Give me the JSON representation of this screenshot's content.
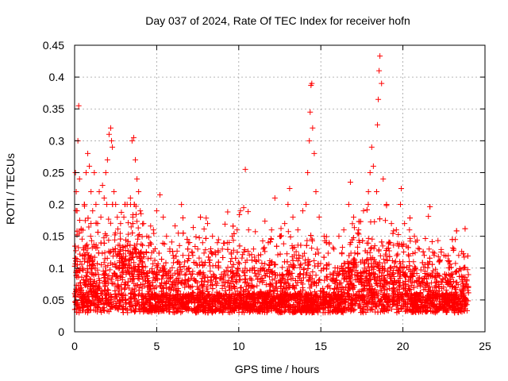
{
  "chart_data": {
    "type": "scatter",
    "title": "Day 037 of 2024, Rate Of TEC Index for receiver hofn",
    "xlabel": "GPS time / hours",
    "ylabel": "ROTI / TECUs",
    "xlim": [
      0,
      25
    ],
    "ylim": [
      0,
      0.45
    ],
    "xticks": [
      0,
      5,
      10,
      15,
      20,
      25
    ],
    "yticks": [
      0,
      0.05,
      0.1,
      0.15,
      0.2,
      0.25,
      0.3,
      0.35,
      0.4,
      0.45
    ],
    "xtick_labels": [
      "0",
      "5",
      "10",
      "15",
      "20",
      "25"
    ],
    "ytick_labels": [
      "0",
      "0.05",
      "0.1",
      "0.15",
      "0.2",
      "0.25",
      "0.3",
      "0.35",
      "0.4",
      "0.45"
    ],
    "grid": true,
    "marker": "+",
    "marker_color": "#ff0000",
    "series": [
      {
        "values_xy": [
          [
            0.05,
            0.25
          ],
          [
            0.1,
            0.22
          ],
          [
            0.15,
            0.19
          ],
          [
            0.2,
            0.3
          ],
          [
            0.25,
            0.355
          ],
          [
            0.3,
            0.24
          ],
          [
            0.4,
            0.16
          ],
          [
            0.5,
            0.12
          ],
          [
            0.6,
            0.2
          ],
          [
            0.7,
            0.25
          ],
          [
            0.8,
            0.28
          ],
          [
            0.9,
            0.26
          ],
          [
            1.0,
            0.22
          ],
          [
            1.1,
            0.19
          ],
          [
            1.2,
            0.25
          ],
          [
            1.3,
            0.2
          ],
          [
            1.4,
            0.17
          ],
          [
            1.5,
            0.22
          ],
          [
            1.6,
            0.18
          ],
          [
            1.7,
            0.23
          ],
          [
            1.8,
            0.21
          ],
          [
            1.9,
            0.25
          ],
          [
            2.0,
            0.27
          ],
          [
            2.1,
            0.31
          ],
          [
            2.2,
            0.32
          ],
          [
            2.25,
            0.3
          ],
          [
            2.3,
            0.29
          ],
          [
            2.4,
            0.22
          ],
          [
            2.5,
            0.2
          ],
          [
            2.6,
            0.18
          ],
          [
            2.8,
            0.17
          ],
          [
            3.0,
            0.18
          ],
          [
            3.2,
            0.2
          ],
          [
            3.4,
            0.21
          ],
          [
            3.5,
            0.3
          ],
          [
            3.6,
            0.305
          ],
          [
            3.7,
            0.27
          ],
          [
            3.8,
            0.24
          ],
          [
            3.9,
            0.22
          ],
          [
            4.0,
            0.19
          ],
          [
            4.2,
            0.17
          ],
          [
            4.4,
            0.15
          ],
          [
            4.6,
            0.14
          ],
          [
            4.8,
            0.16
          ],
          [
            5.0,
            0.19
          ],
          [
            5.2,
            0.215
          ],
          [
            5.4,
            0.18
          ],
          [
            5.6,
            0.15
          ],
          [
            5.8,
            0.13
          ],
          [
            6.0,
            0.12
          ],
          [
            6.3,
            0.11
          ],
          [
            6.6,
            0.12
          ],
          [
            6.9,
            0.13
          ],
          [
            7.2,
            0.12
          ],
          [
            7.5,
            0.13
          ],
          [
            7.8,
            0.14
          ],
          [
            8.1,
            0.17
          ],
          [
            8.4,
            0.15
          ],
          [
            8.7,
            0.14
          ],
          [
            9.0,
            0.13
          ],
          [
            9.3,
            0.14
          ],
          [
            9.6,
            0.15
          ],
          [
            9.9,
            0.16
          ],
          [
            10.1,
            0.19
          ],
          [
            10.3,
            0.195
          ],
          [
            10.4,
            0.255
          ],
          [
            10.6,
            0.16
          ],
          [
            10.9,
            0.13
          ],
          [
            11.2,
            0.12
          ],
          [
            11.5,
            0.13
          ],
          [
            11.8,
            0.14
          ],
          [
            12.0,
            0.16
          ],
          [
            12.2,
            0.21
          ],
          [
            12.5,
            0.15
          ],
          [
            12.8,
            0.17
          ],
          [
            13.0,
            0.2
          ],
          [
            13.1,
            0.225
          ],
          [
            13.3,
            0.18
          ],
          [
            13.6,
            0.16
          ],
          [
            13.9,
            0.19
          ],
          [
            14.1,
            0.2
          ],
          [
            14.2,
            0.25
          ],
          [
            14.3,
            0.3
          ],
          [
            14.35,
            0.345
          ],
          [
            14.4,
            0.387
          ],
          [
            14.45,
            0.39
          ],
          [
            14.5,
            0.32
          ],
          [
            14.6,
            0.28
          ],
          [
            14.7,
            0.22
          ],
          [
            14.9,
            0.18
          ],
          [
            15.2,
            0.15
          ],
          [
            15.5,
            0.14
          ],
          [
            15.8,
            0.13
          ],
          [
            16.1,
            0.15
          ],
          [
            16.4,
            0.16
          ],
          [
            16.7,
            0.2
          ],
          [
            16.8,
            0.235
          ],
          [
            17.0,
            0.18
          ],
          [
            17.3,
            0.16
          ],
          [
            17.6,
            0.19
          ],
          [
            17.9,
            0.22
          ],
          [
            18.0,
            0.25
          ],
          [
            18.1,
            0.29
          ],
          [
            18.2,
            0.26
          ],
          [
            18.4,
            0.22
          ],
          [
            18.45,
            0.325
          ],
          [
            18.5,
            0.365
          ],
          [
            18.55,
            0.41
          ],
          [
            18.6,
            0.433
          ],
          [
            18.7,
            0.39
          ],
          [
            18.8,
            0.24
          ],
          [
            19.0,
            0.2
          ],
          [
            19.3,
            0.17
          ],
          [
            19.6,
            0.16
          ],
          [
            19.9,
            0.225
          ],
          [
            20.1,
            0.17
          ],
          [
            20.4,
            0.16
          ],
          [
            20.7,
            0.15
          ],
          [
            21.0,
            0.13
          ],
          [
            21.3,
            0.12
          ],
          [
            21.6,
            0.13
          ],
          [
            21.9,
            0.12
          ],
          [
            22.2,
            0.11
          ],
          [
            22.5,
            0.12
          ],
          [
            22.8,
            0.11
          ],
          [
            23.1,
            0.13
          ],
          [
            23.4,
            0.12
          ],
          [
            23.7,
            0.1
          ],
          [
            23.9,
            0.08
          ]
        ]
      }
    ]
  }
}
